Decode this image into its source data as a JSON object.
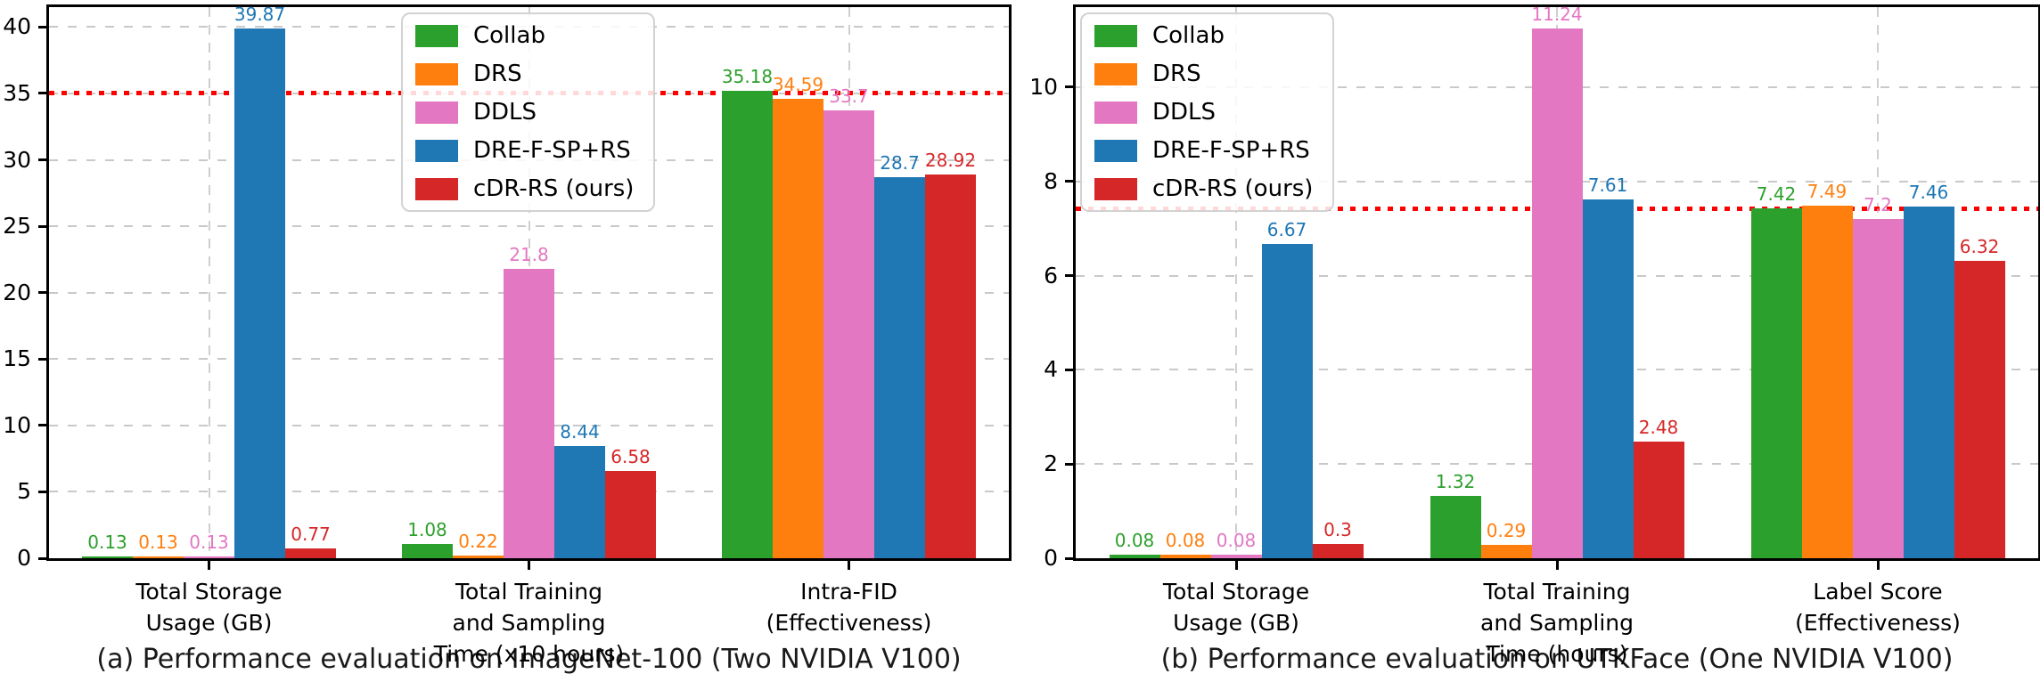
{
  "chart_data": [
    {
      "type": "bar",
      "caption": "(a) Performance evaluation on ImageNet-100 (Two NVIDIA V100)",
      "categories": [
        "Total Storage\nUsage (GB)",
        "Total Training\nand Sampling\nTime (x10 hours)",
        "Intra-FID\n(Effectiveness)"
      ],
      "series": [
        {
          "name": "Collab",
          "color": "#2ca02c",
          "values": [
            0.13,
            1.08,
            35.18
          ]
        },
        {
          "name": "DRS",
          "color": "#ff7f0e",
          "values": [
            0.13,
            0.22,
            34.59
          ]
        },
        {
          "name": "DDLS",
          "color": "#e377c2",
          "values": [
            0.13,
            21.8,
            33.7
          ]
        },
        {
          "name": "DRE-F-SP+RS",
          "color": "#1f77b4",
          "values": [
            39.87,
            8.44,
            28.7
          ]
        },
        {
          "name": "cDR-RS (ours)",
          "color": "#d62728",
          "values": [
            0.77,
            6.58,
            28.92
          ]
        }
      ],
      "yticks": [
        0,
        5,
        10,
        15,
        20,
        25,
        30,
        35,
        40
      ],
      "ylim": [
        0,
        41.5
      ],
      "reference_line": {
        "value": 35,
        "color": "#fe0000",
        "style": "dotted"
      },
      "grid": true,
      "legend_position": "upper-left-inside",
      "xlabel": "",
      "ylabel": ""
    },
    {
      "type": "bar",
      "caption": "(b) Performance evaluation on UTKFace (One NVIDIA V100)",
      "categories": [
        "Total Storage\nUsage (GB)",
        "Total Training\nand Sampling\nTime (hours)",
        "Label Score\n(Effectiveness)"
      ],
      "series": [
        {
          "name": "Collab",
          "color": "#2ca02c",
          "values": [
            0.08,
            1.32,
            7.42
          ]
        },
        {
          "name": "DRS",
          "color": "#ff7f0e",
          "values": [
            0.08,
            0.29,
            7.49
          ]
        },
        {
          "name": "DDLS",
          "color": "#e377c2",
          "values": [
            0.08,
            11.24,
            7.2
          ]
        },
        {
          "name": "DRE-F-SP+RS",
          "color": "#1f77b4",
          "values": [
            6.67,
            7.61,
            7.46
          ]
        },
        {
          "name": "cDR-RS (ours)",
          "color": "#d62728",
          "values": [
            0.3,
            2.48,
            6.32
          ]
        }
      ],
      "yticks": [
        0,
        2,
        4,
        6,
        8,
        10
      ],
      "ylim": [
        0,
        11.7
      ],
      "reference_line": {
        "value": 7.42,
        "color": "#fe0000",
        "style": "dotted"
      },
      "grid": true,
      "legend_position": "upper-left-inside",
      "xlabel": "",
      "ylabel": ""
    }
  ],
  "legend_entries": [
    "Collab",
    "DRS",
    "DDLS",
    "DRE-F-SP+RS",
    "cDR-RS (ours)"
  ]
}
